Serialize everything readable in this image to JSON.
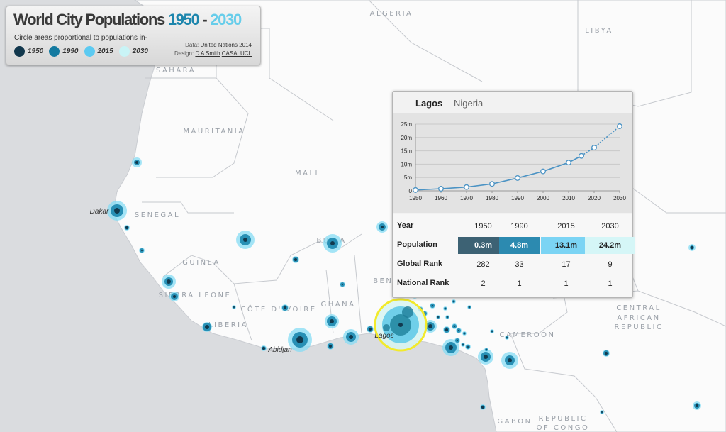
{
  "title": {
    "main": "World City Populations",
    "year_start": "1950",
    "dash": " - ",
    "year_end": "2030",
    "subtitle": "Circle areas proportional to populations in-"
  },
  "legend": [
    {
      "label": "1950",
      "color": "#12384d"
    },
    {
      "label": "1990",
      "color": "#147aa0"
    },
    {
      "label": "2015",
      "color": "#5ccaf1"
    },
    {
      "label": "2030",
      "color": "#c9f4f6"
    }
  ],
  "credits": {
    "data_label": "Data:",
    "data_link": "United Nations 2014",
    "design_label": "Design:",
    "design_link1": "D A Smith",
    "design_link2": "CASA, UCL"
  },
  "map_labels": {
    "countries": [
      "ALGERIA",
      "LIBYA",
      "SAHARA",
      "MAURITANIA",
      "MALI",
      "SENEGAL",
      "GUINEA",
      "SIERRA LEONE",
      "CÔTE D'IVOIRE",
      "LIBERIA",
      "GHANA",
      "BU",
      "NA",
      "BENI",
      "CAMEROON",
      "CENTRAL",
      "AFRICAN",
      "REPUBLIC",
      "GABON",
      "REPUBLIC",
      "OF CONGO"
    ],
    "cities": [
      "Dakar",
      "Abidjan",
      "Lagos"
    ]
  },
  "popup": {
    "city": "Lagos",
    "country": "Nigeria",
    "y_ticks": [
      "0",
      "5m",
      "10m",
      "15m",
      "20m",
      "25m"
    ],
    "x_ticks": [
      "1950",
      "1960",
      "1970",
      "1980",
      "1990",
      "2000",
      "2010",
      "2020",
      "2030"
    ],
    "table": {
      "year_label": "Year",
      "years": [
        "1950",
        "1990",
        "2015",
        "2030"
      ],
      "population_label": "Population",
      "population": [
        "0.3m",
        "4.8m",
        "13.1m",
        "24.2m"
      ],
      "global_rank_label": "Global Rank",
      "global_rank": [
        "282",
        "33",
        "17",
        "9"
      ],
      "national_rank_label": "National Rank",
      "national_rank": [
        "2",
        "1",
        "1",
        "1"
      ]
    },
    "cell_colors": [
      "#3d6274",
      "#2c8ab0",
      "#7bd4f4",
      "#d5f6f7"
    ],
    "cell_text_colors": [
      "#ffffff",
      "#ffffff",
      "#222222",
      "#222222"
    ]
  },
  "chart_data": {
    "type": "line",
    "title": "",
    "xlabel": "",
    "ylabel": "",
    "ylim": [
      0,
      25
    ],
    "xlim": [
      1950,
      2030
    ],
    "series": [
      {
        "x": [
          1950,
          1960,
          1970,
          1980,
          1990,
          2000,
          2010,
          2015
        ],
        "values": [
          0.3,
          0.8,
          1.4,
          2.6,
          4.8,
          7.3,
          10.6,
          13.1
        ]
      },
      {
        "x": [
          2015,
          2020,
          2030
        ],
        "values": [
          13.1,
          16.2,
          24.2
        ]
      }
    ]
  }
}
